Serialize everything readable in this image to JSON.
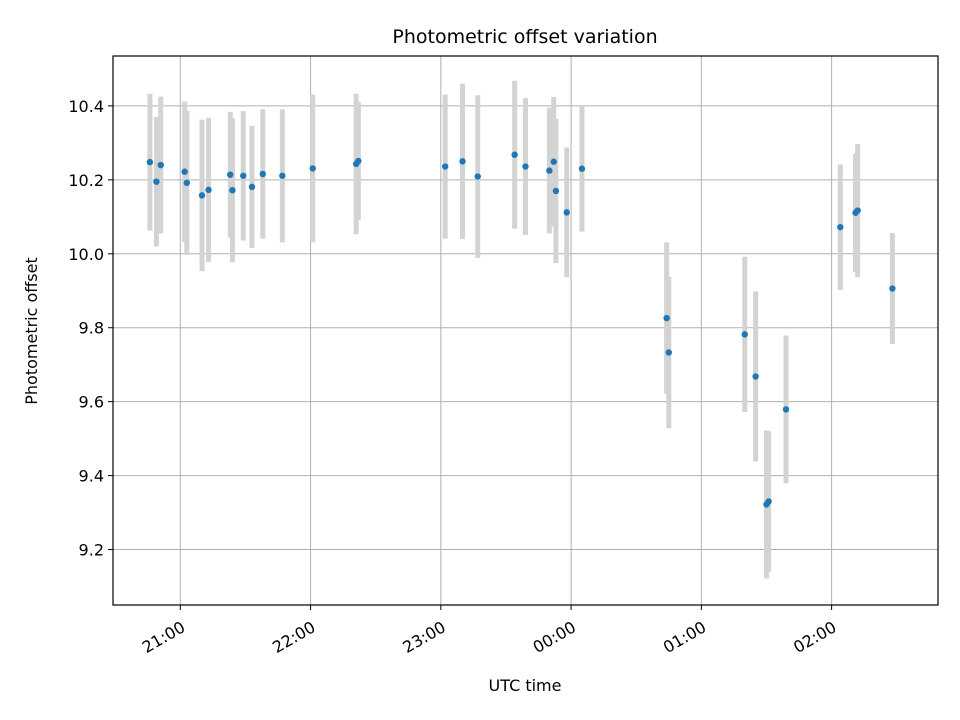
{
  "chart_data": {
    "type": "scatter",
    "title": "Photometric offset variation",
    "xlabel": "UTC time",
    "ylabel": "Photometric offset",
    "xlim": [
      "20:29",
      "02:49"
    ],
    "ylim": [
      9.05,
      10.535
    ],
    "x_ticks": [
      "21:00",
      "22:00",
      "23:00",
      "00:00",
      "01:00",
      "02:00"
    ],
    "y_ticks": [
      9.2,
      9.4,
      9.6,
      9.8,
      10.0,
      10.2,
      10.4
    ],
    "y_tick_labels": [
      "9.2",
      "9.4",
      "9.6",
      "9.8",
      "10.0",
      "10.2",
      "10.4"
    ],
    "grid": true,
    "colors": {
      "points": "#1f77b4",
      "errorbars": "#d3d3d3"
    },
    "series": [
      {
        "x": [
          "20:46",
          "20:49",
          "20:51",
          "21:02",
          "21:03",
          "21:10",
          "21:13",
          "21:23",
          "21:24",
          "21:29",
          "21:33",
          "21:38",
          "21:47",
          "22:01",
          "22:21",
          "22:22",
          "23:02",
          "23:10",
          "23:17",
          "23:34",
          "23:39",
          "23:50",
          "23:52",
          "23:53",
          "23:58",
          "00:05",
          "00:44",
          "00:45",
          "01:20",
          "01:25",
          "01:30",
          "01:31",
          "01:39",
          "02:04",
          "02:11",
          "02:12",
          "02:28"
        ],
        "y": [
          10.248,
          10.195,
          10.24,
          10.222,
          10.192,
          10.158,
          10.173,
          10.214,
          10.172,
          10.211,
          10.181,
          10.216,
          10.211,
          10.231,
          10.243,
          10.251,
          10.236,
          10.25,
          10.209,
          10.268,
          10.236,
          10.225,
          10.249,
          10.17,
          10.112,
          10.23,
          9.826,
          9.733,
          9.782,
          9.668,
          9.322,
          9.33,
          9.579,
          10.072,
          10.111,
          10.117,
          9.906
        ],
        "yerr": [
          0.185,
          0.175,
          0.185,
          0.19,
          0.195,
          0.205,
          0.195,
          0.17,
          0.195,
          0.175,
          0.165,
          0.175,
          0.18,
          0.2,
          0.19,
          0.16,
          0.195,
          0.21,
          0.22,
          0.2,
          0.185,
          0.17,
          0.175,
          0.195,
          0.175,
          0.17,
          0.205,
          0.205,
          0.21,
          0.23,
          0.2,
          0.19,
          0.2,
          0.17,
          0.16,
          0.18,
          0.15
        ]
      }
    ]
  }
}
